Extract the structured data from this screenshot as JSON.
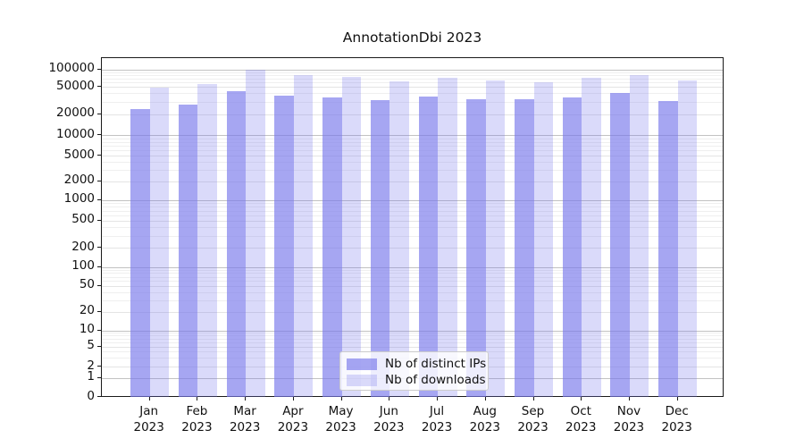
{
  "chart_data": {
    "type": "bar",
    "title": "AnnotationDbi 2023",
    "categories": [
      "Jan",
      "Feb",
      "Mar",
      "Apr",
      "May",
      "Jun",
      "Jul",
      "Aug",
      "Sep",
      "Oct",
      "Nov",
      "Dec"
    ],
    "category_year": "2023",
    "series": [
      {
        "name": "Nb of distinct IPs",
        "color": "#7878eb",
        "alpha": 0.66,
        "values": [
          24600,
          29100,
          46600,
          40200,
          37400,
          34400,
          39000,
          35100,
          34800,
          37800,
          43400,
          33300
        ]
      },
      {
        "name": "Nb of downloads",
        "color": "#7878eb",
        "alpha": 0.27,
        "values": [
          52900,
          60500,
          98400,
          82800,
          77800,
          65200,
          75400,
          68000,
          63800,
          75400,
          82800,
          67300
        ]
      }
    ],
    "y_ticks": [
      0,
      1,
      2,
      5,
      10,
      20,
      50,
      100,
      200,
      500,
      1000,
      2000,
      5000,
      10000,
      20000,
      50000,
      100000
    ],
    "y_scale": "log",
    "ylim": [
      1,
      150000
    ],
    "grid": true,
    "legend_position": "lower center"
  }
}
